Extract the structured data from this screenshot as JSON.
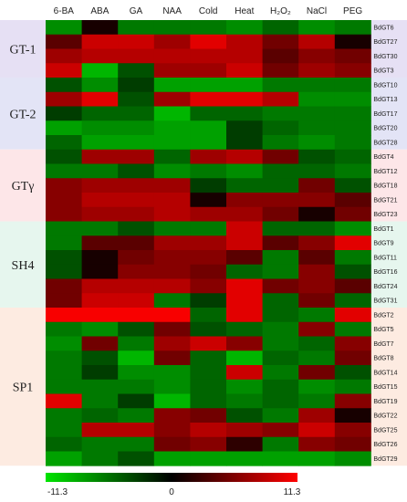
{
  "chart_data": {
    "type": "heatmap",
    "columns": [
      "6-BA",
      "ABA",
      "GA",
      "NAA",
      "Cold",
      "Heat",
      "H₂O₂",
      "NaCl",
      "PEG"
    ],
    "rows": [
      "BdGT6",
      "BdGT27",
      "BdGT30",
      "BdGT3",
      "BdGT10",
      "BdGT13",
      "BdGT17",
      "BdGT20",
      "BdGT28",
      "BdGT4",
      "BdGT12",
      "BdGT18",
      "BdGT21",
      "BdGT23",
      "BdGT1",
      "BdGT9",
      "BdGT11",
      "BdGT16",
      "BdGT24",
      "BdGT31",
      "BdGT2",
      "BdGT5",
      "BdGT7",
      "BdGT8",
      "BdGT14",
      "BdGT15",
      "BdGT19",
      "BdGT22",
      "BdGT25",
      "BdGT26",
      "BdGT29"
    ],
    "values": [
      [
        -7,
        1,
        -6,
        -6,
        -6,
        -7,
        -5,
        -7,
        -6
      ],
      [
        4,
        9,
        9,
        7,
        10,
        8,
        5,
        8,
        1
      ],
      [
        7,
        8,
        8,
        8,
        8,
        8,
        4,
        6,
        5
      ],
      [
        9,
        -9,
        -4,
        7,
        7,
        9,
        5,
        7,
        6
      ],
      [
        -4,
        -7,
        -3,
        -8,
        -8,
        -8,
        -6,
        -6,
        -6
      ],
      [
        7,
        10,
        -4,
        7,
        10,
        10,
        8,
        -7,
        -7
      ],
      [
        -3,
        -5,
        -5,
        -9,
        -5,
        -5,
        -6,
        -6,
        -6
      ],
      [
        -8,
        -7,
        -7,
        -8,
        -8,
        -3,
        -5,
        -6,
        -6
      ],
      [
        -5,
        -8,
        -8,
        -8,
        -8,
        -3,
        -6,
        -7,
        -6
      ],
      [
        -4,
        7,
        7,
        -5,
        7,
        8,
        5,
        -4,
        -5
      ],
      [
        -6,
        -6,
        -4,
        -7,
        -6,
        -7,
        -5,
        -5,
        -6
      ],
      [
        6,
        7,
        7,
        7,
        -3,
        -5,
        -5,
        5,
        -4
      ],
      [
        6,
        8,
        8,
        8,
        1,
        6,
        6,
        6,
        4
      ],
      [
        6,
        7,
        7,
        8,
        7,
        7,
        5,
        1,
        5
      ],
      [
        -6,
        -6,
        -4,
        -6,
        -6,
        9,
        -5,
        -5,
        -7
      ],
      [
        -6,
        4,
        4,
        7,
        7,
        9,
        4,
        6,
        10
      ],
      [
        -4,
        1,
        5,
        6,
        6,
        4,
        -6,
        4,
        -6
      ],
      [
        -4,
        1,
        6,
        6,
        5,
        -5,
        -6,
        6,
        -4
      ],
      [
        5,
        8,
        8,
        8,
        6,
        10,
        5,
        6,
        4
      ],
      [
        5,
        9,
        9,
        -6,
        -3,
        10,
        -5,
        5,
        -5
      ],
      [
        11,
        11,
        11,
        11,
        -5,
        10,
        -5,
        -6,
        10
      ],
      [
        -6,
        -7,
        -4,
        5,
        -4,
        -5,
        -6,
        6,
        -6
      ],
      [
        -7,
        5,
        -6,
        7,
        9,
        6,
        -6,
        -5,
        6
      ],
      [
        -6,
        -4,
        -9,
        5,
        -5,
        -9,
        -5,
        -6,
        5
      ],
      [
        -6,
        -3,
        -7,
        -7,
        -5,
        9,
        -6,
        5,
        -4
      ],
      [
        -6,
        -6,
        -6,
        -7,
        -5,
        -7,
        -5,
        -7,
        -6
      ],
      [
        10,
        -6,
        -3,
        -9,
        -5,
        -6,
        -5,
        -6,
        6
      ],
      [
        -6,
        -5,
        -6,
        6,
        5,
        -4,
        -6,
        7,
        1
      ],
      [
        -6,
        8,
        8,
        6,
        8,
        7,
        6,
        9,
        6
      ],
      [
        -5,
        -6,
        -6,
        5,
        6,
        2,
        -6,
        6,
        5
      ],
      [
        -8,
        -6,
        -4,
        -8,
        -8,
        -8,
        -8,
        -8,
        -7
      ]
    ],
    "groups": [
      {
        "name": "GT-1",
        "start": 0,
        "end": 3,
        "color": "#e6e0f4"
      },
      {
        "name": "GT-2",
        "start": 4,
        "end": 8,
        "color": "#e3e4f6"
      },
      {
        "name": "GTγ",
        "start": 9,
        "end": 13,
        "color": "#fde6e8"
      },
      {
        "name": "SH4",
        "start": 14,
        "end": 19,
        "color": "#e6f6ee"
      },
      {
        "name": "SP1",
        "start": 20,
        "end": 30,
        "color": "#fdebe1"
      }
    ],
    "colorbar": {
      "min": -11.3,
      "max": 11.3,
      "labels": [
        "-11.3",
        "0",
        "11.3"
      ],
      "low_color": "#00e400",
      "mid_color": "#000000",
      "high_color": "#ff0000"
    }
  }
}
